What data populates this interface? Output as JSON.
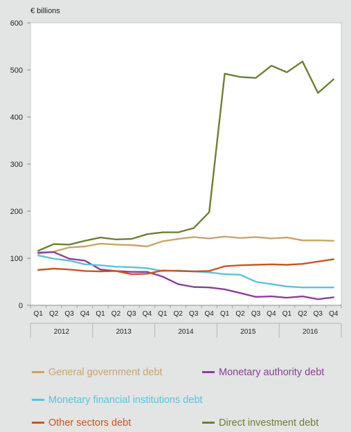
{
  "chart_data": {
    "type": "line",
    "unit_label": "€ billions",
    "ylim": [
      0,
      600
    ],
    "yticks": [
      0,
      100,
      200,
      300,
      400,
      500,
      600
    ],
    "quarters": [
      "Q1",
      "Q2",
      "Q3",
      "Q4",
      "Q1",
      "Q2",
      "Q3",
      "Q4",
      "Q1",
      "Q2",
      "Q3",
      "Q4",
      "Q1",
      "Q2",
      "Q3",
      "Q4",
      "Q1",
      "Q2",
      "Q3",
      "Q4"
    ],
    "years": [
      "2012",
      "2013",
      "2014",
      "2015",
      "2016"
    ],
    "x": [
      "2012 Q1",
      "2012 Q2",
      "2012 Q3",
      "2012 Q4",
      "2013 Q1",
      "2013 Q2",
      "2013 Q3",
      "2013 Q4",
      "2014 Q1",
      "2014 Q2",
      "2014 Q3",
      "2014 Q4",
      "2015 Q1",
      "2015 Q2",
      "2015 Q3",
      "2015 Q4",
      "2016 Q1",
      "2016 Q2",
      "2016 Q3",
      "2016 Q4"
    ],
    "series": [
      {
        "name": "General government debt",
        "color": "#c9a46a",
        "values": [
          110,
          114,
          123,
          125,
          131,
          129,
          128,
          125,
          136,
          141,
          145,
          142,
          146,
          143,
          145,
          142,
          144,
          138,
          138,
          137
        ]
      },
      {
        "name": "Monetary authority debt",
        "color": "#8b3f97",
        "values": [
          112,
          113,
          99,
          95,
          76,
          73,
          71,
          71,
          61,
          45,
          39,
          38,
          34,
          26,
          18,
          19,
          16,
          19,
          13,
          17
        ]
      },
      {
        "name": "Monetary financial institutions debt",
        "color": "#5bc2dc",
        "values": [
          106,
          99,
          95,
          87,
          85,
          82,
          81,
          79,
          73,
          74,
          72,
          70,
          66,
          65,
          50,
          45,
          40,
          38,
          38,
          38
        ]
      },
      {
        "name": "Other sectors debt",
        "color": "#c8561e",
        "values": [
          75,
          78,
          76,
          73,
          72,
          73,
          66,
          67,
          74,
          73,
          72,
          73,
          83,
          85,
          86,
          87,
          86,
          88,
          93,
          98
        ]
      },
      {
        "name": "Direct investment debt",
        "color": "#6b8035",
        "values": [
          116,
          130,
          129,
          137,
          144,
          140,
          141,
          151,
          155,
          155,
          164,
          198,
          492,
          485,
          483,
          509,
          495,
          518,
          451,
          480
        ]
      }
    ]
  }
}
